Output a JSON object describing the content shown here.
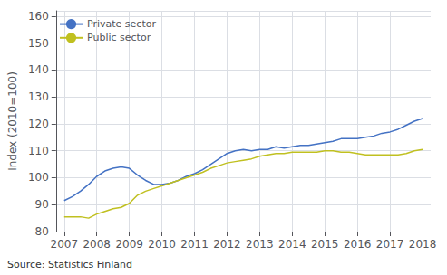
{
  "chart_data": {
    "type": "line",
    "ylabel": "Index (2010=100)",
    "annotations": [
      "Source: Statistics Finland"
    ],
    "x": [
      2007.0,
      2007.25,
      2007.5,
      2007.75,
      2008.0,
      2008.25,
      2008.5,
      2008.75,
      2009.0,
      2009.25,
      2009.5,
      2009.75,
      2010.0,
      2010.25,
      2010.5,
      2010.75,
      2011.0,
      2011.25,
      2011.5,
      2011.75,
      2012.0,
      2012.25,
      2012.5,
      2012.75,
      2013.0,
      2013.25,
      2013.5,
      2013.75,
      2014.0,
      2014.25,
      2014.5,
      2014.75,
      2015.0,
      2015.25,
      2015.5,
      2015.75,
      2016.0,
      2016.25,
      2016.5,
      2016.75,
      2017.0,
      2017.25,
      2017.5,
      2017.75,
      2018.0
    ],
    "series": [
      {
        "name": "Private sector",
        "color": "#4472c4",
        "values": [
          91.5,
          93.0,
          95.0,
          97.5,
          100.5,
          102.5,
          103.5,
          104.0,
          103.5,
          101.0,
          99.0,
          97.5,
          97.5,
          98.0,
          99.0,
          100.5,
          101.5,
          103.0,
          105.0,
          107.0,
          109.0,
          110.0,
          110.5,
          110.0,
          110.5,
          110.5,
          111.5,
          111.0,
          111.5,
          112.0,
          112.0,
          112.5,
          113.0,
          113.5,
          114.5,
          114.5,
          114.5,
          115.0,
          115.5,
          116.5,
          117.0,
          118.0,
          119.5,
          121.0,
          122.0
        ]
      },
      {
        "name": "Public sector",
        "color": "#c0c020",
        "values": [
          85.5,
          85.5,
          85.5,
          85.0,
          86.5,
          87.5,
          88.5,
          89.0,
          90.5,
          93.5,
          95.0,
          96.0,
          97.0,
          98.0,
          99.0,
          100.0,
          101.0,
          102.0,
          103.5,
          104.5,
          105.5,
          106.0,
          106.5,
          107.0,
          108.0,
          108.5,
          109.0,
          109.0,
          109.5,
          109.5,
          109.5,
          109.5,
          110.0,
          110.0,
          109.5,
          109.5,
          109.0,
          108.5,
          108.5,
          108.5,
          108.5,
          108.5,
          109.0,
          110.0,
          110.5
        ]
      }
    ],
    "xlim": [
      2006.75,
      2018.25
    ],
    "xticks": [
      2007,
      2008,
      2009,
      2010,
      2011,
      2012,
      2013,
      2014,
      2015,
      2016,
      2017,
      2018
    ],
    "ylim": [
      80,
      162
    ],
    "yticks": [
      80,
      90,
      100,
      110,
      120,
      130,
      140,
      150,
      160
    ],
    "grid": true,
    "legend": "upper left"
  }
}
